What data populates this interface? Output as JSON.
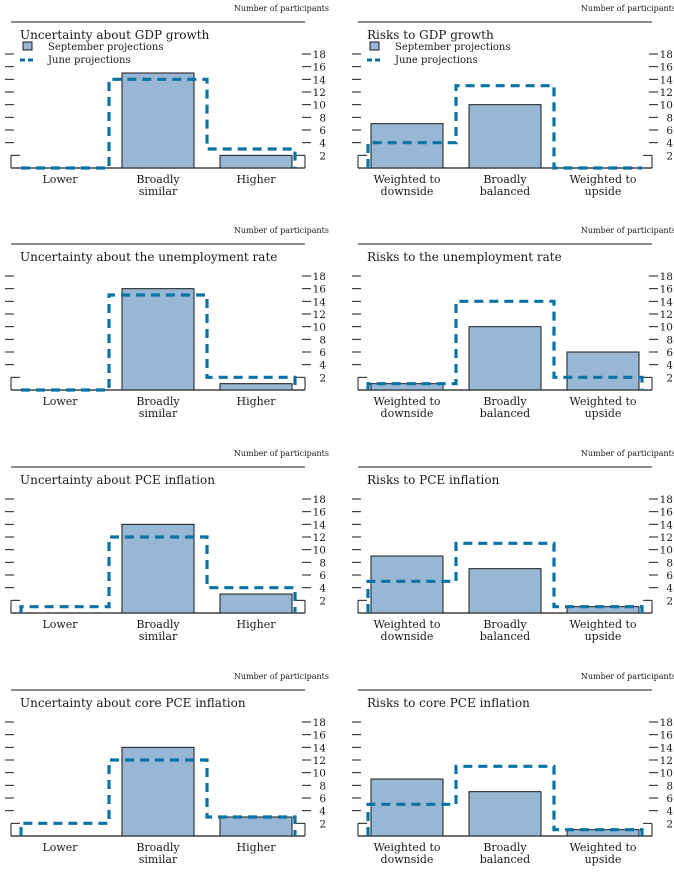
{
  "units_label": "Number of participants",
  "legend": {
    "september": "September projections",
    "june": "June projections"
  },
  "colors": {
    "bar_fill": "#97b7d4",
    "bar_stroke": "#1a1a1a",
    "june_line": "#0b72a6",
    "axis": "#1a1a1a"
  },
  "chart_data": [
    {
      "type": "bar",
      "title": "Uncertainty about GDP growth",
      "ylabel": "Number of participants",
      "categories": [
        [
          "Lower"
        ],
        [
          "Broadly",
          "similar"
        ],
        [
          "Higher"
        ]
      ],
      "series": [
        {
          "name": "September projections",
          "style": "bar",
          "values": [
            0,
            15,
            2
          ]
        },
        {
          "name": "June projections",
          "style": "dashed-outline",
          "values": [
            0,
            14,
            3
          ]
        }
      ],
      "yticks": [
        2,
        4,
        6,
        8,
        10,
        12,
        14,
        16,
        18
      ],
      "ylim": [
        0,
        18
      ],
      "legend": true,
      "legend_position": "top-left"
    },
    {
      "type": "bar",
      "title": "Risks to GDP growth",
      "ylabel": "Number of participants",
      "categories": [
        [
          "Weighted to",
          "downside"
        ],
        [
          "Broadly",
          "balanced"
        ],
        [
          "Weighted to",
          "upside"
        ]
      ],
      "series": [
        {
          "name": "September projections",
          "style": "bar",
          "values": [
            7,
            10,
            0
          ]
        },
        {
          "name": "June projections",
          "style": "dashed-outline",
          "values": [
            4,
            13,
            0
          ]
        }
      ],
      "yticks": [
        2,
        4,
        6,
        8,
        10,
        12,
        14,
        16,
        18
      ],
      "ylim": [
        0,
        18
      ],
      "legend": true,
      "legend_position": "top-left"
    },
    {
      "type": "bar",
      "title": "Uncertainty about the unemployment rate",
      "ylabel": "Number of participants",
      "categories": [
        [
          "Lower"
        ],
        [
          "Broadly",
          "similar"
        ],
        [
          "Higher"
        ]
      ],
      "series": [
        {
          "name": "September projections",
          "style": "bar",
          "values": [
            0,
            16,
            1
          ]
        },
        {
          "name": "June projections",
          "style": "dashed-outline",
          "values": [
            0,
            15,
            2
          ]
        }
      ],
      "yticks": [
        2,
        4,
        6,
        8,
        10,
        12,
        14,
        16,
        18
      ],
      "ylim": [
        0,
        18
      ],
      "legend": false
    },
    {
      "type": "bar",
      "title": "Risks to the unemployment rate",
      "ylabel": "Number of participants",
      "categories": [
        [
          "Weighted to",
          "downside"
        ],
        [
          "Broadly",
          "balanced"
        ],
        [
          "Weighted to",
          "upside"
        ]
      ],
      "series": [
        {
          "name": "September projections",
          "style": "bar",
          "values": [
            1,
            10,
            6
          ]
        },
        {
          "name": "June projections",
          "style": "dashed-outline",
          "values": [
            1,
            14,
            2
          ]
        }
      ],
      "yticks": [
        2,
        4,
        6,
        8,
        10,
        12,
        14,
        16,
        18
      ],
      "ylim": [
        0,
        18
      ],
      "legend": false
    },
    {
      "type": "bar",
      "title": "Uncertainty about PCE inflation",
      "ylabel": "Number of participants",
      "categories": [
        [
          "Lower"
        ],
        [
          "Broadly",
          "similar"
        ],
        [
          "Higher"
        ]
      ],
      "series": [
        {
          "name": "September projections",
          "style": "bar",
          "values": [
            0,
            14,
            3
          ]
        },
        {
          "name": "June projections",
          "style": "dashed-outline",
          "values": [
            1,
            12,
            4
          ]
        }
      ],
      "yticks": [
        2,
        4,
        6,
        8,
        10,
        12,
        14,
        16,
        18
      ],
      "ylim": [
        0,
        18
      ],
      "legend": false
    },
    {
      "type": "bar",
      "title": "Risks to PCE inflation",
      "ylabel": "Number of participants",
      "categories": [
        [
          "Weighted to",
          "downside"
        ],
        [
          "Broadly",
          "balanced"
        ],
        [
          "Weighted to",
          "upside"
        ]
      ],
      "series": [
        {
          "name": "September projections",
          "style": "bar",
          "values": [
            9,
            7,
            1
          ]
        },
        {
          "name": "June projections",
          "style": "dashed-outline",
          "values": [
            5,
            11,
            1
          ]
        }
      ],
      "yticks": [
        2,
        4,
        6,
        8,
        10,
        12,
        14,
        16,
        18
      ],
      "ylim": [
        0,
        18
      ],
      "legend": false
    },
    {
      "type": "bar",
      "title": "Uncertainty about core PCE inflation",
      "ylabel": "Number of participants",
      "categories": [
        [
          "Lower"
        ],
        [
          "Broadly",
          "similar"
        ],
        [
          "Higher"
        ]
      ],
      "series": [
        {
          "name": "September projections",
          "style": "bar",
          "values": [
            0,
            14,
            3
          ]
        },
        {
          "name": "June projections",
          "style": "dashed-outline",
          "values": [
            2,
            12,
            3
          ]
        }
      ],
      "yticks": [
        2,
        4,
        6,
        8,
        10,
        12,
        14,
        16,
        18
      ],
      "ylim": [
        0,
        18
      ],
      "legend": false
    },
    {
      "type": "bar",
      "title": "Risks to core PCE inflation",
      "ylabel": "Number of participants",
      "categories": [
        [
          "Weighted to",
          "downside"
        ],
        [
          "Broadly",
          "balanced"
        ],
        [
          "Weighted to",
          "upside"
        ]
      ],
      "series": [
        {
          "name": "September projections",
          "style": "bar",
          "values": [
            9,
            7,
            1
          ]
        },
        {
          "name": "June projections",
          "style": "dashed-outline",
          "values": [
            5,
            11,
            1
          ]
        }
      ],
      "yticks": [
        2,
        4,
        6,
        8,
        10,
        12,
        14,
        16,
        18
      ],
      "ylim": [
        0,
        18
      ],
      "legend": false
    }
  ]
}
